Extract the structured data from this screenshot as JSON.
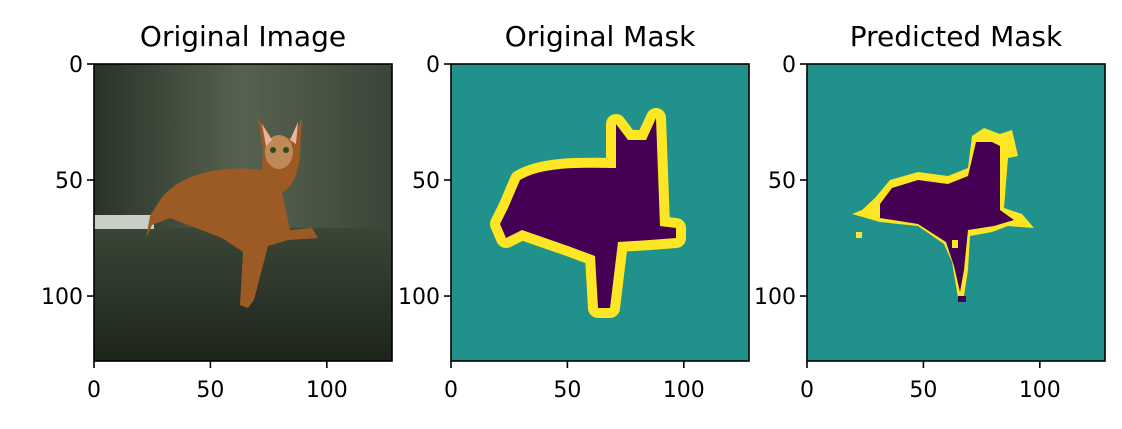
{
  "chart_data": [
    {
      "type": "heatmap",
      "title": "Original Image",
      "content": "photo",
      "xlim": [
        0,
        128
      ],
      "ylim": [
        128,
        0
      ],
      "xticks": [
        0,
        50,
        100
      ],
      "yticks": [
        0,
        50,
        100
      ],
      "xtick_labels": [
        "0",
        "50",
        "100"
      ],
      "ytick_labels": [
        "0",
        "50",
        "100"
      ]
    },
    {
      "type": "heatmap",
      "title": "Original Mask",
      "content": "mask",
      "colormap": "viridis",
      "colors": {
        "background": "#21918c",
        "object": "#440154",
        "border": "#fde725"
      },
      "xlim": [
        0,
        128
      ],
      "ylim": [
        128,
        0
      ],
      "xticks": [
        0,
        50,
        100
      ],
      "yticks": [
        0,
        50,
        100
      ],
      "xtick_labels": [
        "0",
        "50",
        "100"
      ],
      "ytick_labels": [
        "0",
        "50",
        "100"
      ]
    },
    {
      "type": "heatmap",
      "title": "Predicted Mask",
      "content": "mask",
      "colormap": "viridis",
      "colors": {
        "background": "#21918c",
        "object": "#440154",
        "border": "#fde725"
      },
      "xlim": [
        0,
        128
      ],
      "ylim": [
        128,
        0
      ],
      "xticks": [
        0,
        50,
        100
      ],
      "yticks": [
        0,
        50,
        100
      ],
      "xtick_labels": [
        "0",
        "50",
        "100"
      ],
      "ytick_labels": [
        "0",
        "50",
        "100"
      ]
    }
  ]
}
